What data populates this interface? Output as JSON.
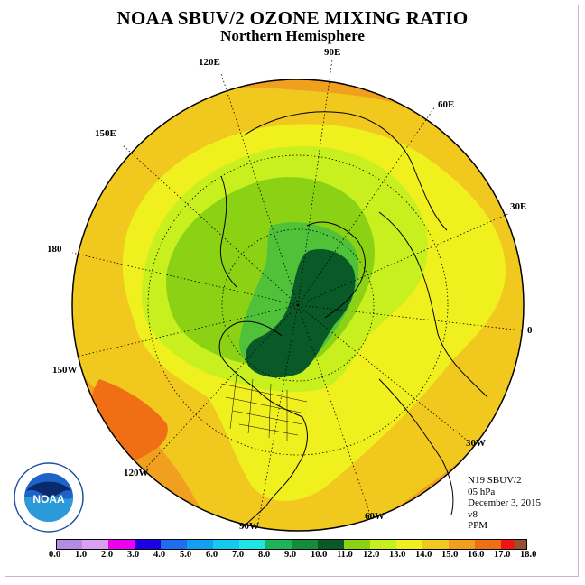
{
  "title": "NOAA SBUV/2 OZONE MIXING RATIO",
  "subtitle": "Northern Hemisphere",
  "longitude_labels": [
    "90E",
    "60E",
    "30E",
    "0",
    "30W",
    "60W",
    "90W",
    "120W",
    "150W",
    "180",
    "150E",
    "120E"
  ],
  "info": {
    "satellite": "N19 SBUV/2",
    "level": "05 hPa",
    "date": "December 3, 2015",
    "version": "v8",
    "units": "PPM"
  },
  "colorbar": {
    "ticks": [
      "0.0",
      "1.0",
      "2.0",
      "3.0",
      "4.0",
      "5.0",
      "6.0",
      "7.0",
      "8.0",
      "9.0",
      "10.0",
      "11.0",
      "12.0",
      "13.0",
      "14.0",
      "15.0",
      "16.0",
      "17.0",
      "18.0"
    ],
    "colors": [
      "#b48ce6",
      "#dca0f0",
      "#f000f0",
      "#1e00e6",
      "#1e6ef0",
      "#14a0f0",
      "#14c8f0",
      "#1ee6e6",
      "#1eb45a",
      "#148c3c",
      "#0a5a28",
      "#8cd214",
      "#c8f01e",
      "#f0f01e",
      "#f0c81e",
      "#f0a01e",
      "#f06e14",
      "#f01414",
      "#96502d"
    ]
  },
  "logo": {
    "icon": "noaa-logo-icon",
    "text": "NOAA"
  }
}
